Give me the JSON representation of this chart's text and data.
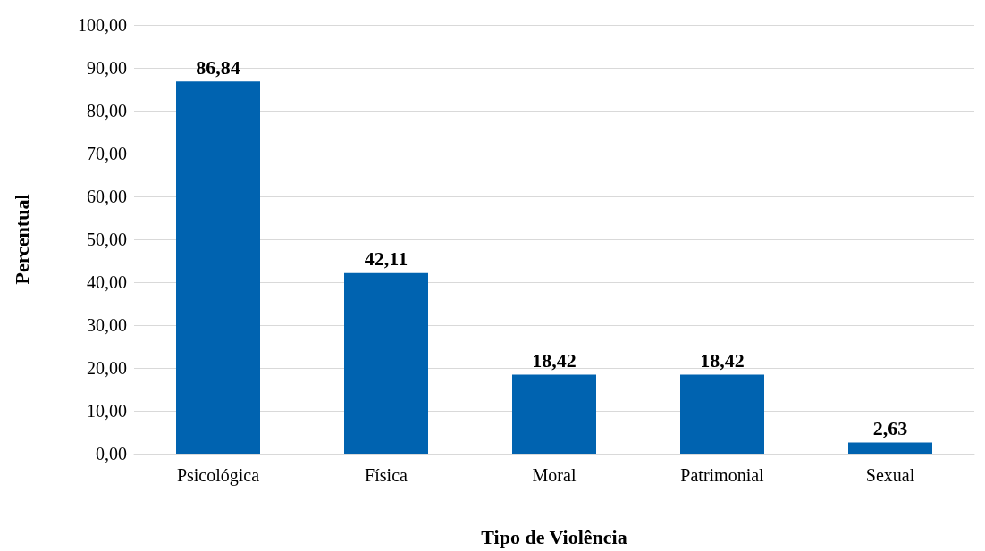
{
  "chart_data": {
    "type": "bar",
    "xlabel": "Tipo de Violência",
    "ylabel": "Percentual",
    "categories": [
      "Psicológica",
      "Física",
      "Moral",
      "Patrimonial",
      "Sexual"
    ],
    "values": [
      86.84,
      42.11,
      18.42,
      18.42,
      2.63
    ],
    "value_labels": [
      "86,84",
      "42,11",
      "18,42",
      "18,42",
      "2,63"
    ],
    "color": "#0063b0",
    "ylim": [
      0,
      100
    ],
    "yticks": [
      {
        "value": 0,
        "label": "0,00"
      },
      {
        "value": 10,
        "label": "10,00"
      },
      {
        "value": 20,
        "label": "20,00"
      },
      {
        "value": 30,
        "label": "30,00"
      },
      {
        "value": 40,
        "label": "40,00"
      },
      {
        "value": 50,
        "label": "50,00"
      },
      {
        "value": 60,
        "label": "60,00"
      },
      {
        "value": 70,
        "label": "70,00"
      },
      {
        "value": 80,
        "label": "80,00"
      },
      {
        "value": 90,
        "label": "90,00"
      },
      {
        "value": 100,
        "label": "100,00"
      }
    ],
    "grid": "y"
  }
}
